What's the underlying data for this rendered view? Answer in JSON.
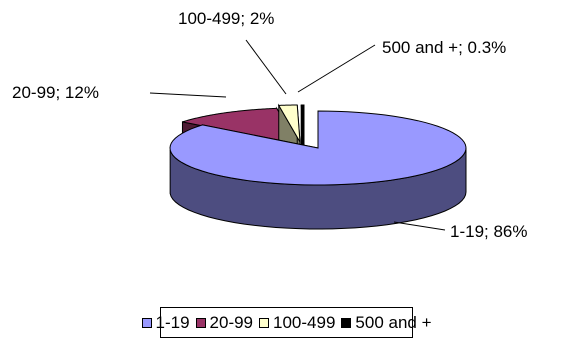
{
  "chart_data": {
    "type": "pie",
    "title": "",
    "categories": [
      "1-19",
      "20-99",
      "100-499",
      "500 and +"
    ],
    "values": [
      86,
      12,
      2,
      0.3
    ],
    "units": "%",
    "data_labels": [
      "1-19; 86%",
      "20-99; 12%",
      "100-499; 2%",
      "500 and +; 0.3%"
    ],
    "colors": [
      "#9999ff",
      "#993366",
      "#ffffcc",
      "#000000"
    ],
    "style": "3d-exploded",
    "legend": {
      "position": "bottom",
      "items": [
        "1-19",
        "20-99",
        "100-499",
        "500 and +"
      ]
    }
  }
}
